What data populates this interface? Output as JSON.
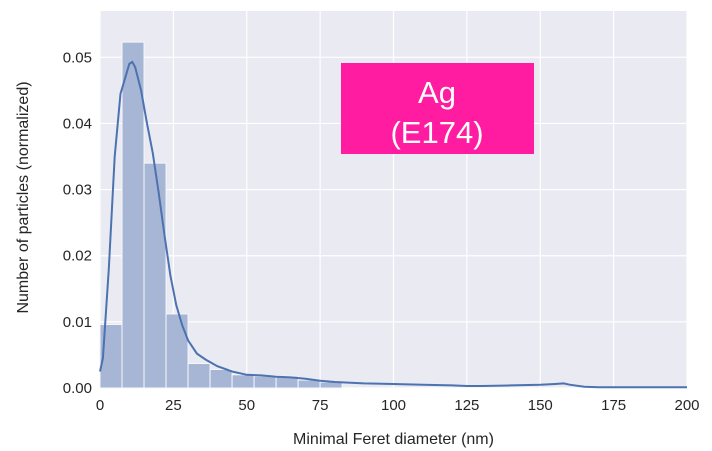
{
  "chart_data": {
    "type": "bar",
    "xlabel": "Minimal Feret diameter (nm)",
    "ylabel": "Number of particles (normalized)",
    "xlim": [
      0,
      200
    ],
    "ylim": [
      0,
      0.057
    ],
    "grid": true,
    "xticks": [
      0,
      25,
      50,
      75,
      100,
      125,
      150,
      175,
      200
    ],
    "xtick_labels": [
      "0",
      "25",
      "50",
      "75",
      "100",
      "125",
      "150",
      "175",
      "200"
    ],
    "yticks": [
      0.0,
      0.01,
      0.02,
      0.03,
      0.04,
      0.05
    ],
    "ytick_labels": [
      "0.00",
      "0.01",
      "0.02",
      "0.03",
      "0.04",
      "0.05"
    ],
    "bin_width": 7.5,
    "bins": [
      {
        "x0": 0,
        "value": 0.0096
      },
      {
        "x0": 7.5,
        "value": 0.0523
      },
      {
        "x0": 15,
        "value": 0.034
      },
      {
        "x0": 22.5,
        "value": 0.0112
      },
      {
        "x0": 30,
        "value": 0.0037
      },
      {
        "x0": 37.5,
        "value": 0.0028
      },
      {
        "x0": 45,
        "value": 0.002
      },
      {
        "x0": 52.5,
        "value": 0.0018
      },
      {
        "x0": 60,
        "value": 0.0018
      },
      {
        "x0": 67.5,
        "value": 0.0012
      },
      {
        "x0": 75,
        "value": 0.0009
      }
    ],
    "kde": {
      "x": [
        0,
        1,
        3,
        5,
        7,
        9,
        10,
        11,
        12,
        14,
        16,
        18,
        20,
        22,
        24,
        26,
        28,
        30,
        33,
        36,
        40,
        45,
        50,
        55,
        60,
        65,
        70,
        75,
        80,
        90,
        100,
        110,
        120,
        125,
        130,
        140,
        150,
        155,
        158,
        160,
        165,
        170,
        180,
        190,
        200
      ],
      "y": [
        0.0025,
        0.0045,
        0.018,
        0.035,
        0.0445,
        0.0475,
        0.049,
        0.0493,
        0.0485,
        0.045,
        0.04,
        0.0355,
        0.0295,
        0.023,
        0.017,
        0.0125,
        0.0095,
        0.0072,
        0.0052,
        0.0043,
        0.0033,
        0.0025,
        0.002,
        0.0019,
        0.0017,
        0.0016,
        0.0014,
        0.0011,
        0.0009,
        0.0007,
        0.0006,
        0.0005,
        0.0004,
        0.0003,
        0.0003,
        0.0004,
        0.0005,
        0.0006,
        0.0007,
        0.0005,
        0.0002,
        0.0001,
        0.0001,
        0.0001,
        0.0001
      ]
    },
    "colors": {
      "bar_fill": "#a7b6d4",
      "bar_edge": "#f5f7fb",
      "kde_line": "#4c72b0",
      "plot_bg": "#eaeaf2",
      "grid": "#ffffff"
    },
    "annotation": {
      "lines": [
        "Ag",
        "(E174)"
      ],
      "background": "#ff1ca0"
    }
  }
}
